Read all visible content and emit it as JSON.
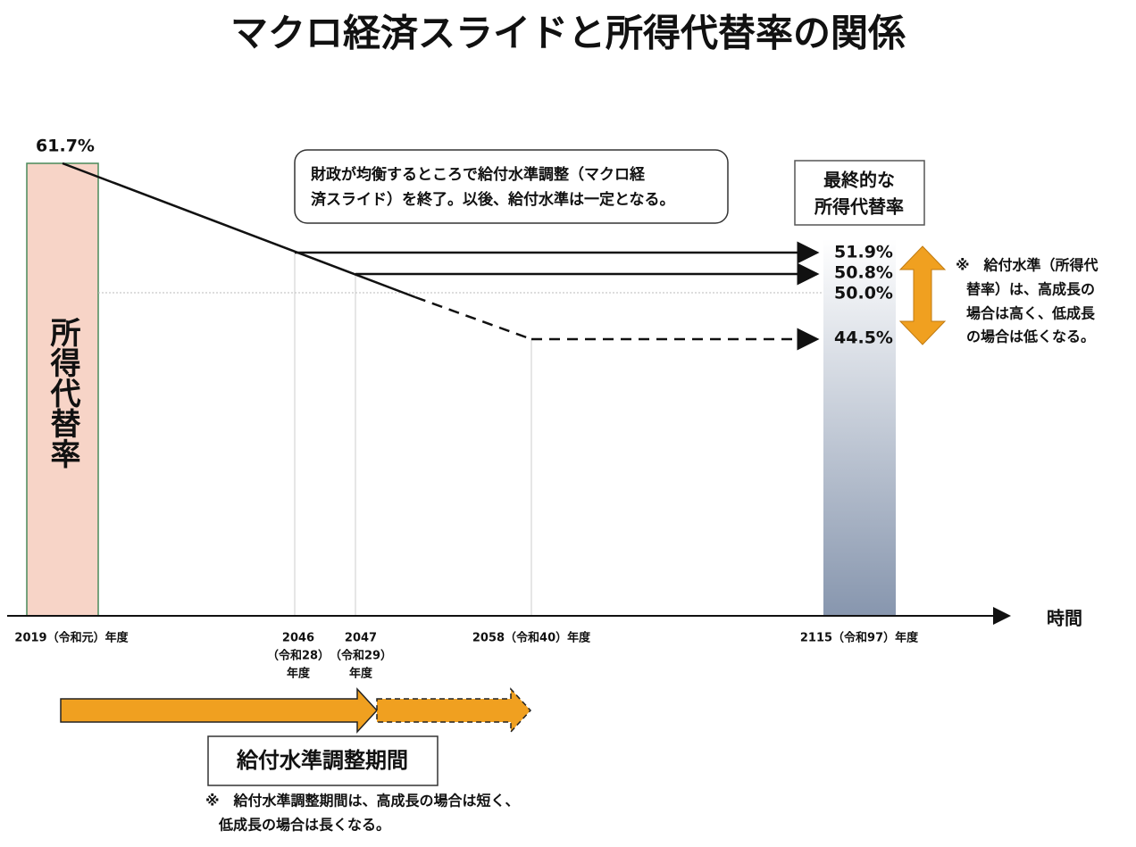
{
  "title": "マクロ経済スライドと所得代替率の関係",
  "left_bar": {
    "label": "所得代替率",
    "value_label": "61.7%"
  },
  "callout": {
    "lines": [
      "財政が均衡するところで給付水準調整（マクロ経",
      "済スライド）を終了。以後、給付水準は一定となる。"
    ]
  },
  "final_box": {
    "lines": [
      "最終的な",
      "所得代替率"
    ]
  },
  "final_values": [
    "51.9%",
    "50.8%",
    "50.0%",
    "44.5%"
  ],
  "range_note": {
    "lines": [
      "※　給付水準（所得代",
      "替率）は、高成長の",
      "場合は高く、低成長",
      "の場合は低くなる。"
    ]
  },
  "axis": {
    "title": "時間",
    "labels": [
      {
        "lines": [
          "2019（令和元）年度"
        ]
      },
      {
        "lines": [
          "2046",
          "（令和28）",
          "年度"
        ]
      },
      {
        "lines": [
          "2047",
          "（令和29）",
          "年度"
        ]
      },
      {
        "lines": [
          "2058（令和40）年度"
        ]
      },
      {
        "lines": [
          "2115（令和97）年度"
        ]
      }
    ]
  },
  "period": {
    "label": "給付水準調整期間",
    "note": [
      "※　給付水準調整期間は、高成長の場合は短く、",
      "低成長の場合は長くなる。"
    ]
  }
}
